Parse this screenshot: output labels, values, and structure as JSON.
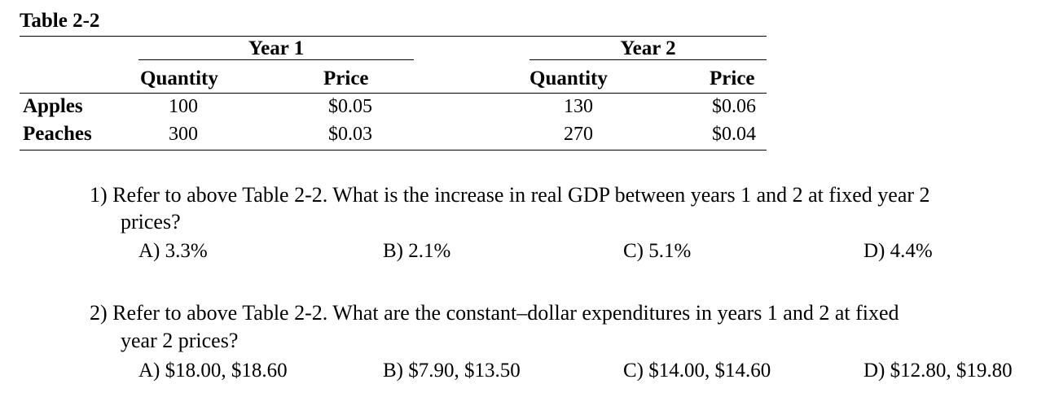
{
  "table": {
    "title": "Table 2-2",
    "years": [
      "Year 1",
      "Year 2"
    ],
    "column_headers": [
      "Quantity",
      "Price",
      "Quantity",
      "Price"
    ],
    "rows": [
      {
        "label": "Apples",
        "cells": [
          "100",
          "$0.05",
          "130",
          "$0.06"
        ]
      },
      {
        "label": "Peaches",
        "cells": [
          "300",
          "$0.03",
          "270",
          "$0.04"
        ]
      }
    ]
  },
  "questions": [
    {
      "line1": "1) Refer to above Table 2-2. What is the increase in real GDP between years 1 and 2 at fixed year 2",
      "line2": "prices?",
      "choices": [
        "A) 3.3%",
        "B) 2.1%",
        "C) 5.1%",
        "D) 4.4%"
      ]
    },
    {
      "line1": "2) Refer to above Table 2-2. What are the constant–dollar expenditures in years 1 and 2 at fixed",
      "line2": "year 2 prices?",
      "choices": [
        "A) $18.00, $18.60",
        "B) $7.90, $13.50",
        "C) $14.00, $14.60",
        "D) $12.80, $19.80"
      ]
    }
  ]
}
